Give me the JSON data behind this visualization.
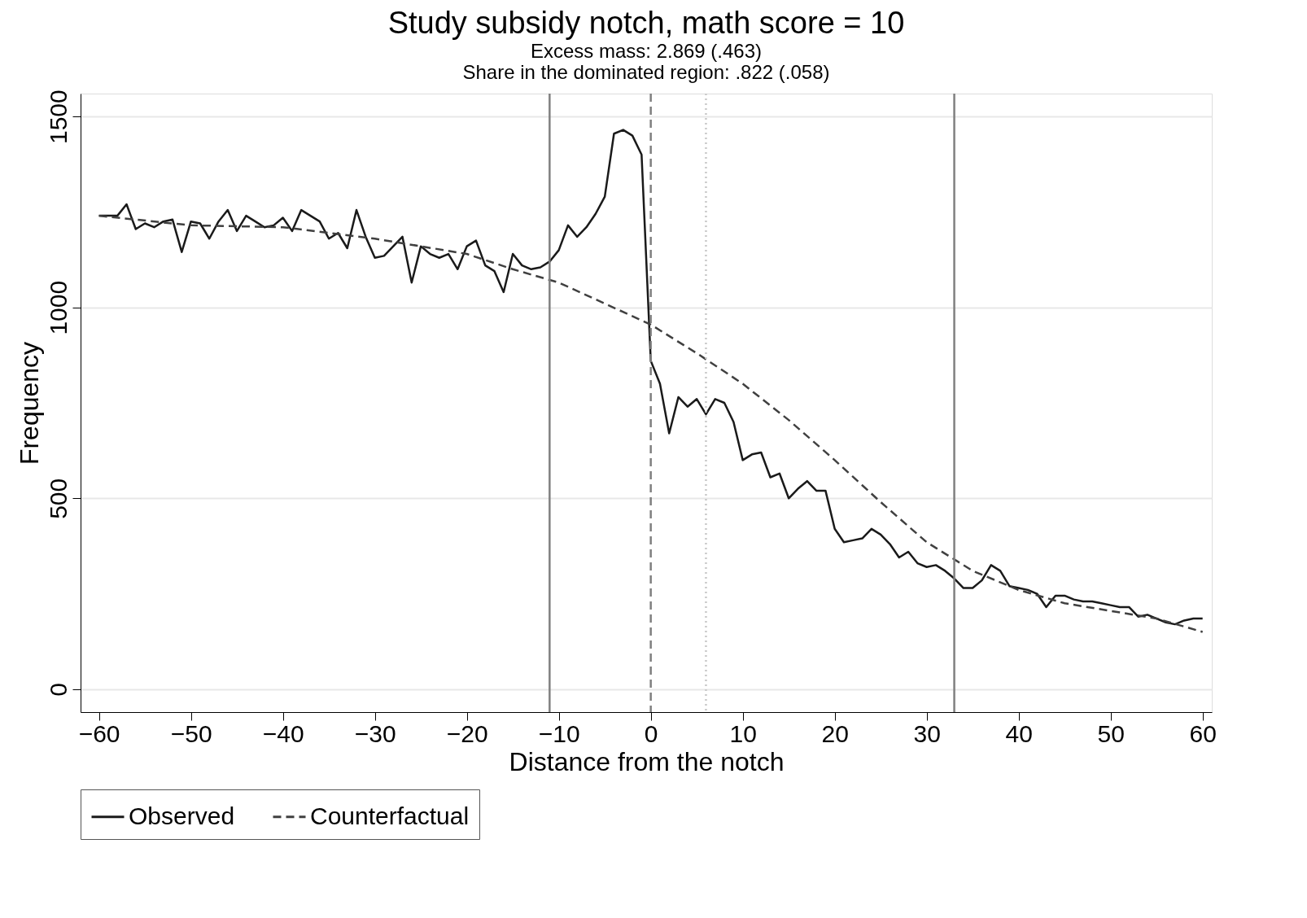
{
  "chart_data": {
    "type": "line",
    "title": "Study subsidy notch, math score = 10",
    "subtitle": "Excess mass: 2.869 (.463)\nShare in the dominated region: .822 (.058)",
    "xlabel": "Distance from the notch",
    "ylabel": "Frequency",
    "xlim": [
      -62,
      61
    ],
    "ylim": [
      -60,
      1560
    ],
    "xticks": [
      -60,
      -50,
      -40,
      -30,
      -20,
      -10,
      0,
      10,
      20,
      30,
      40,
      50,
      60
    ],
    "yticks": [
      0,
      500,
      1000,
      1500
    ],
    "grid": "y",
    "legend": "bottom",
    "series": [
      {
        "name": "Observed",
        "color": "#1a1a1a",
        "line_style": "solid",
        "x": [
          -60,
          -59,
          -58,
          -57,
          -56,
          -55,
          -54,
          -53,
          -52,
          -51,
          -50,
          -49,
          -48,
          -47,
          -46,
          -45,
          -44,
          -43,
          -42,
          -41,
          -40,
          -39,
          -38,
          -37,
          -36,
          -35,
          -34,
          -33,
          -32,
          -31,
          -30,
          -29,
          -28,
          -27,
          -26,
          -25,
          -24,
          -23,
          -22,
          -21,
          -20,
          -19,
          -18,
          -17,
          -16,
          -15,
          -14,
          -13,
          -12,
          -11,
          -10,
          -9,
          -8,
          -7,
          -6,
          -5,
          -4,
          -3,
          -2,
          -1,
          0,
          1,
          2,
          3,
          4,
          5,
          6,
          7,
          8,
          9,
          10,
          11,
          12,
          13,
          14,
          15,
          16,
          17,
          18,
          19,
          20,
          21,
          22,
          23,
          24,
          25,
          26,
          27,
          28,
          29,
          30,
          31,
          32,
          33,
          34,
          35,
          36,
          37,
          38,
          39,
          40,
          41,
          42,
          43,
          44,
          45,
          46,
          47,
          48,
          49,
          50,
          51,
          52,
          53,
          54,
          55,
          56,
          57,
          58,
          59,
          60
        ],
        "values": [
          1240,
          1240,
          1240,
          1270,
          1205,
          1220,
          1210,
          1225,
          1230,
          1145,
          1225,
          1220,
          1180,
          1225,
          1255,
          1200,
          1240,
          1225,
          1210,
          1215,
          1235,
          1200,
          1255,
          1240,
          1225,
          1180,
          1195,
          1155,
          1255,
          1185,
          1130,
          1135,
          1160,
          1185,
          1065,
          1160,
          1140,
          1130,
          1140,
          1100,
          1160,
          1175,
          1110,
          1095,
          1040,
          1140,
          1110,
          1100,
          1105,
          1120,
          1150,
          1215,
          1185,
          1210,
          1245,
          1290,
          1455,
          1465,
          1450,
          1400,
          860,
          800,
          670,
          765,
          740,
          760,
          720,
          760,
          750,
          700,
          600,
          615,
          620,
          555,
          565,
          500,
          525,
          545,
          520,
          520,
          420,
          385,
          390,
          395,
          420,
          405,
          380,
          345,
          360,
          330,
          320,
          325,
          310,
          290,
          265,
          265,
          285,
          325,
          310,
          270,
          265,
          260,
          250,
          215,
          245,
          245,
          235,
          230,
          230,
          225,
          220,
          215,
          215,
          190,
          195,
          185,
          175,
          170,
          180,
          185,
          185
        ]
      },
      {
        "name": "Counterfactual",
        "color": "#404040",
        "line_style": "dashed",
        "x": [
          -60,
          -50,
          -40,
          -30,
          -20,
          -15,
          -10,
          -5,
          0,
          5,
          10,
          15,
          20,
          25,
          30,
          35,
          40,
          45,
          50,
          55,
          60
        ],
        "values": [
          1240,
          1215,
          1210,
          1180,
          1140,
          1100,
          1065,
          1010,
          955,
          880,
          800,
          705,
          600,
          490,
          385,
          310,
          260,
          225,
          205,
          185,
          150
        ]
      }
    ],
    "ref_lines": [
      {
        "axis": "x",
        "value": -11,
        "color": "#808080",
        "line_style": "solid"
      },
      {
        "axis": "x",
        "value": 0,
        "color": "#808080",
        "line_style": "dashed"
      },
      {
        "axis": "x",
        "value": 6,
        "color": "#c8c8c8",
        "line_style": "dotted"
      },
      {
        "axis": "x",
        "value": 33,
        "color": "#808080",
        "line_style": "solid"
      }
    ]
  }
}
